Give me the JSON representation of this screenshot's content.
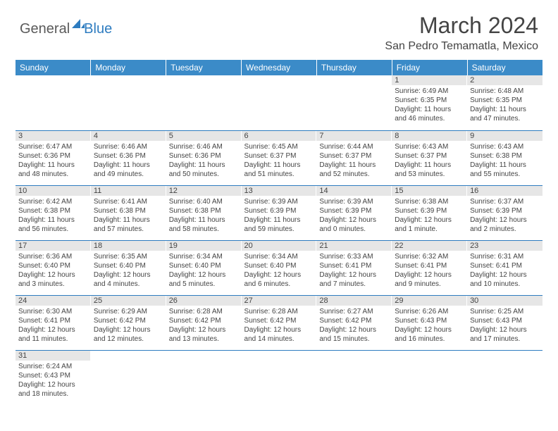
{
  "logo": {
    "textGeneral": "General",
    "textBlue": "Blue"
  },
  "title": "March 2024",
  "location": "San Pedro Temamatla, Mexico",
  "colors": {
    "headerBlue": "#3b8bc8",
    "ruleBlue": "#2e7cc0",
    "dayShade": "#e6e6e6",
    "text": "#444444",
    "logoGray": "#5a5a5a"
  },
  "dayHeaders": [
    "Sunday",
    "Monday",
    "Tuesday",
    "Wednesday",
    "Thursday",
    "Friday",
    "Saturday"
  ],
  "weeks": [
    [
      null,
      null,
      null,
      null,
      null,
      {
        "n": "1",
        "sunrise": "6:49 AM",
        "sunset": "6:35 PM",
        "daylight": "11 hours and 46 minutes."
      },
      {
        "n": "2",
        "sunrise": "6:48 AM",
        "sunset": "6:35 PM",
        "daylight": "11 hours and 47 minutes."
      }
    ],
    [
      {
        "n": "3",
        "sunrise": "6:47 AM",
        "sunset": "6:36 PM",
        "daylight": "11 hours and 48 minutes."
      },
      {
        "n": "4",
        "sunrise": "6:46 AM",
        "sunset": "6:36 PM",
        "daylight": "11 hours and 49 minutes."
      },
      {
        "n": "5",
        "sunrise": "6:46 AM",
        "sunset": "6:36 PM",
        "daylight": "11 hours and 50 minutes."
      },
      {
        "n": "6",
        "sunrise": "6:45 AM",
        "sunset": "6:37 PM",
        "daylight": "11 hours and 51 minutes."
      },
      {
        "n": "7",
        "sunrise": "6:44 AM",
        "sunset": "6:37 PM",
        "daylight": "11 hours and 52 minutes."
      },
      {
        "n": "8",
        "sunrise": "6:43 AM",
        "sunset": "6:37 PM",
        "daylight": "11 hours and 53 minutes."
      },
      {
        "n": "9",
        "sunrise": "6:43 AM",
        "sunset": "6:38 PM",
        "daylight": "11 hours and 55 minutes."
      }
    ],
    [
      {
        "n": "10",
        "sunrise": "6:42 AM",
        "sunset": "6:38 PM",
        "daylight": "11 hours and 56 minutes."
      },
      {
        "n": "11",
        "sunrise": "6:41 AM",
        "sunset": "6:38 PM",
        "daylight": "11 hours and 57 minutes."
      },
      {
        "n": "12",
        "sunrise": "6:40 AM",
        "sunset": "6:38 PM",
        "daylight": "11 hours and 58 minutes."
      },
      {
        "n": "13",
        "sunrise": "6:39 AM",
        "sunset": "6:39 PM",
        "daylight": "11 hours and 59 minutes."
      },
      {
        "n": "14",
        "sunrise": "6:39 AM",
        "sunset": "6:39 PM",
        "daylight": "12 hours and 0 minutes."
      },
      {
        "n": "15",
        "sunrise": "6:38 AM",
        "sunset": "6:39 PM",
        "daylight": "12 hours and 1 minute."
      },
      {
        "n": "16",
        "sunrise": "6:37 AM",
        "sunset": "6:39 PM",
        "daylight": "12 hours and 2 minutes."
      }
    ],
    [
      {
        "n": "17",
        "sunrise": "6:36 AM",
        "sunset": "6:40 PM",
        "daylight": "12 hours and 3 minutes."
      },
      {
        "n": "18",
        "sunrise": "6:35 AM",
        "sunset": "6:40 PM",
        "daylight": "12 hours and 4 minutes."
      },
      {
        "n": "19",
        "sunrise": "6:34 AM",
        "sunset": "6:40 PM",
        "daylight": "12 hours and 5 minutes."
      },
      {
        "n": "20",
        "sunrise": "6:34 AM",
        "sunset": "6:40 PM",
        "daylight": "12 hours and 6 minutes."
      },
      {
        "n": "21",
        "sunrise": "6:33 AM",
        "sunset": "6:41 PM",
        "daylight": "12 hours and 7 minutes."
      },
      {
        "n": "22",
        "sunrise": "6:32 AM",
        "sunset": "6:41 PM",
        "daylight": "12 hours and 9 minutes."
      },
      {
        "n": "23",
        "sunrise": "6:31 AM",
        "sunset": "6:41 PM",
        "daylight": "12 hours and 10 minutes."
      }
    ],
    [
      {
        "n": "24",
        "sunrise": "6:30 AM",
        "sunset": "6:41 PM",
        "daylight": "12 hours and 11 minutes."
      },
      {
        "n": "25",
        "sunrise": "6:29 AM",
        "sunset": "6:42 PM",
        "daylight": "12 hours and 12 minutes."
      },
      {
        "n": "26",
        "sunrise": "6:28 AM",
        "sunset": "6:42 PM",
        "daylight": "12 hours and 13 minutes."
      },
      {
        "n": "27",
        "sunrise": "6:28 AM",
        "sunset": "6:42 PM",
        "daylight": "12 hours and 14 minutes."
      },
      {
        "n": "28",
        "sunrise": "6:27 AM",
        "sunset": "6:42 PM",
        "daylight": "12 hours and 15 minutes."
      },
      {
        "n": "29",
        "sunrise": "6:26 AM",
        "sunset": "6:43 PM",
        "daylight": "12 hours and 16 minutes."
      },
      {
        "n": "30",
        "sunrise": "6:25 AM",
        "sunset": "6:43 PM",
        "daylight": "12 hours and 17 minutes."
      }
    ],
    [
      {
        "n": "31",
        "sunrise": "6:24 AM",
        "sunset": "6:43 PM",
        "daylight": "12 hours and 18 minutes."
      },
      null,
      null,
      null,
      null,
      null,
      null
    ]
  ]
}
